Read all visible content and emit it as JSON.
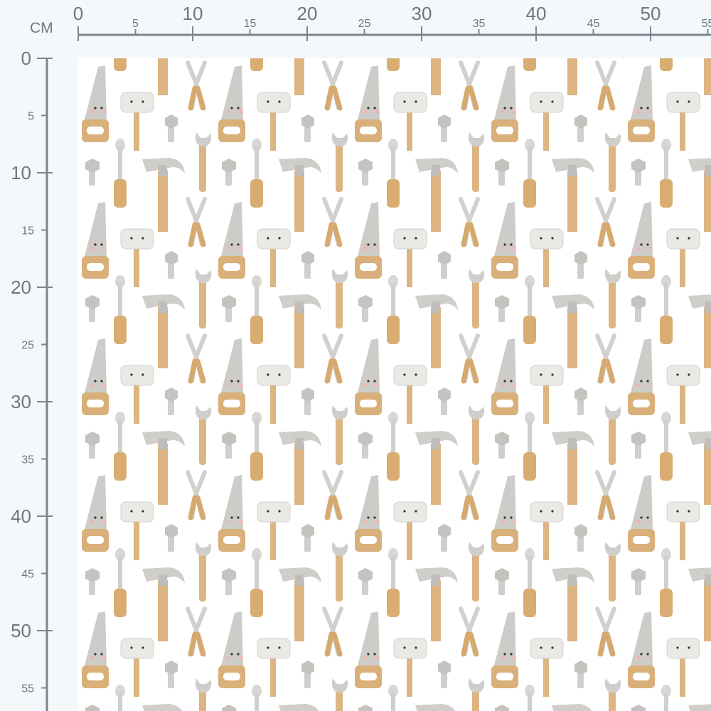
{
  "ruler": {
    "unit_label": "CM",
    "top_labels": [
      "0",
      "5",
      "10",
      "15",
      "20",
      "25",
      "30",
      "35",
      "40",
      "45",
      "50",
      "55"
    ],
    "left_labels": [
      "0",
      "5",
      "10",
      "15",
      "20",
      "25",
      "30",
      "35",
      "40",
      "45",
      "50",
      "55"
    ],
    "color": "#7a8590"
  },
  "fabric": {
    "background": "#ffffff",
    "motifs": [
      "saw-icon",
      "mallet-icon",
      "pliers-icon",
      "bolt-icon",
      "screwdriver-icon",
      "hammer-icon",
      "wrench-icon"
    ],
    "colors": {
      "metal": "#cfcfcc",
      "wood": "#d9b07a",
      "cheek": "#f2b4a8"
    }
  }
}
